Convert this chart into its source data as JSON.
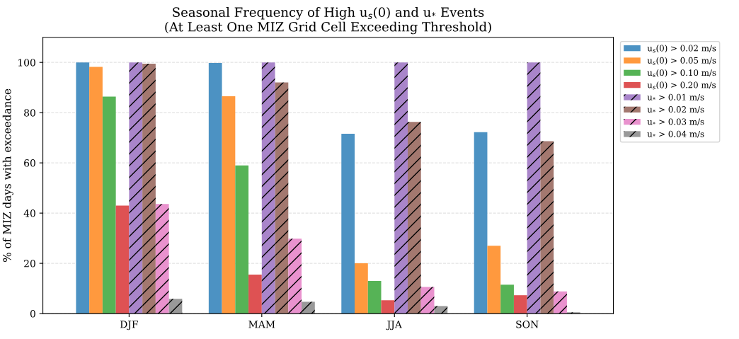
{
  "chart_data": {
    "type": "bar",
    "title": "Seasonal Frequency of High u$_{s}$(0) and u$_{*}$ Events\n(At Least One MIZ Grid Cell Exceeding Threshold)",
    "ylabel": "% of MIZ days with exceedance",
    "categories": [
      "DJF",
      "MAM",
      "JJA",
      "SON"
    ],
    "series": [
      {
        "name": "u$_{s}$(0) > 0.02 m/s",
        "color": "#4c92c3",
        "values": [
          100,
          99.8,
          71.6,
          72.2
        ]
      },
      {
        "name": "u$_{s}$(0) > 0.05 m/s",
        "color": "#ff993e",
        "values": [
          98.2,
          86.5,
          20,
          27
        ]
      },
      {
        "name": "u$_{s}$(0) > 0.10 m/s",
        "color": "#56b356",
        "values": [
          86.4,
          59,
          13,
          11.5
        ]
      },
      {
        "name": "u$_{s}$(0) > 0.20 m/s",
        "color": "#de5253",
        "values": [
          43,
          15.5,
          5.3,
          7.3
        ]
      },
      {
        "name": "u$_{*}$ > 0.01 m/s",
        "color": "#a985ca",
        "values": [
          100,
          100,
          100,
          100
        ]
      },
      {
        "name": "u$_{*}$ > 0.02 m/s",
        "color": "#a3786f",
        "values": [
          99.5,
          92,
          76.3,
          68.6
        ]
      },
      {
        "name": "u$_{*}$ > 0.03 m/s",
        "color": "#e992ce",
        "values": [
          43.6,
          29.8,
          10.6,
          8.8
        ]
      },
      {
        "name": "u$_{*}$ > 0.04 m/s",
        "color": "#999999",
        "values": [
          5.9,
          4.7,
          3,
          0.5
        ]
      }
    ],
    "ylim": [
      0,
      110
    ],
    "yticks": [
      0,
      20,
      40,
      60,
      80,
      100
    ],
    "grid": "y",
    "legend": "top right"
  }
}
